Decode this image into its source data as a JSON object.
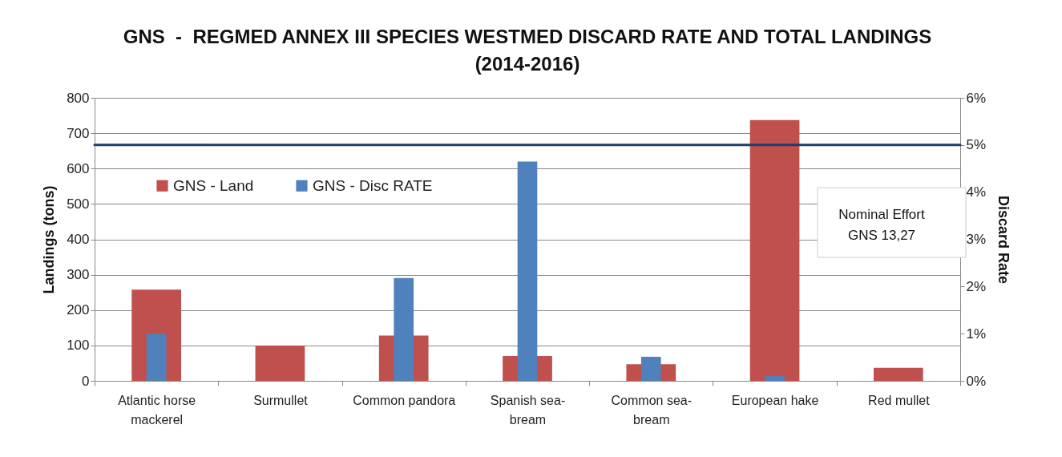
{
  "chart_data": {
    "type": "bar",
    "title": "GNS  -  REGMED ANNEX III SPECIES WESTMED DISCARD RATE AND TOTAL LANDINGS (2014-2016)",
    "ylabel": "Landings (tons)",
    "y2label": "Discard Rate",
    "categories": [
      "Atlantic horse mackerel",
      "Surmullet",
      "Common pandora",
      "Spanish sea-bream",
      "Common sea-bream",
      "European hake",
      "Red mullet"
    ],
    "series": [
      {
        "name": "GNS - Land",
        "color": "#c0504d",
        "values": [
          258,
          100,
          128,
          70,
          47,
          737,
          37
        ]
      },
      {
        "name": "GNS  - Disc RATE",
        "color": "#4f81bd",
        "axis": "y2",
        "values": [
          1.0,
          null,
          2.18,
          4.65,
          0.51,
          0.1,
          null
        ]
      }
    ],
    "ylim": [
      0,
      800
    ],
    "yticks": [
      0,
      100,
      200,
      300,
      400,
      500,
      600,
      700,
      800
    ],
    "y2lim": [
      0,
      6
    ],
    "y2ticks": [
      {
        "value": 0,
        "label": "0%"
      },
      {
        "value": 1,
        "label": "1%"
      },
      {
        "value": 2,
        "label": "2%"
      },
      {
        "value": 3,
        "label": "3%"
      },
      {
        "value": 4,
        "label": "4%"
      },
      {
        "value": 5,
        "label": "5%"
      },
      {
        "value": 6,
        "label": "6%"
      }
    ],
    "ref_lines": [
      {
        "axis": "y2",
        "value": 5,
        "color": "#1f3d6e"
      }
    ],
    "annotations": [
      "Nominal Effort\nGNS 13,27"
    ],
    "grid": "y",
    "legend": "top left"
  }
}
